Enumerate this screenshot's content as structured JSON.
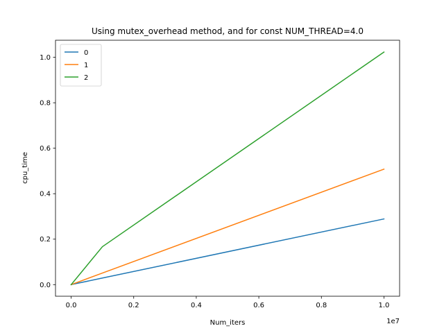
{
  "chart_data": {
    "type": "line",
    "title": "Using mutex_overhead method, and for const NUM_THREAD=4.0",
    "xlabel": "Num_iters",
    "ylabel": "cpu_time",
    "x_offset_label": "1e7",
    "x_scale": 10000000,
    "xlim": [
      -500000,
      10500000
    ],
    "ylim": [
      -0.051,
      1.075
    ],
    "x_ticks": [
      0,
      2000000,
      4000000,
      6000000,
      8000000,
      10000000
    ],
    "x_tick_labels": [
      "0.0",
      "0.2",
      "0.4",
      "0.6",
      "0.8",
      "1.0"
    ],
    "y_ticks": [
      0.0,
      0.2,
      0.4,
      0.6,
      0.8,
      1.0
    ],
    "y_tick_labels": [
      "0.0",
      "0.2",
      "0.4",
      "0.6",
      "0.8",
      "1.0"
    ],
    "grid": false,
    "legend_position": "upper-left",
    "series": [
      {
        "name": "0",
        "color": "#1f77b4",
        "x": [
          0,
          1000000,
          10000000
        ],
        "y": [
          0.0,
          0.029,
          0.289
        ]
      },
      {
        "name": "1",
        "color": "#ff7f0e",
        "x": [
          0,
          1000000,
          10000000
        ],
        "y": [
          0.0,
          0.051,
          0.508
        ]
      },
      {
        "name": "2",
        "color": "#2ca02c",
        "x": [
          0,
          1000000,
          10000000
        ],
        "y": [
          0.0,
          0.167,
          1.023
        ]
      }
    ]
  }
}
